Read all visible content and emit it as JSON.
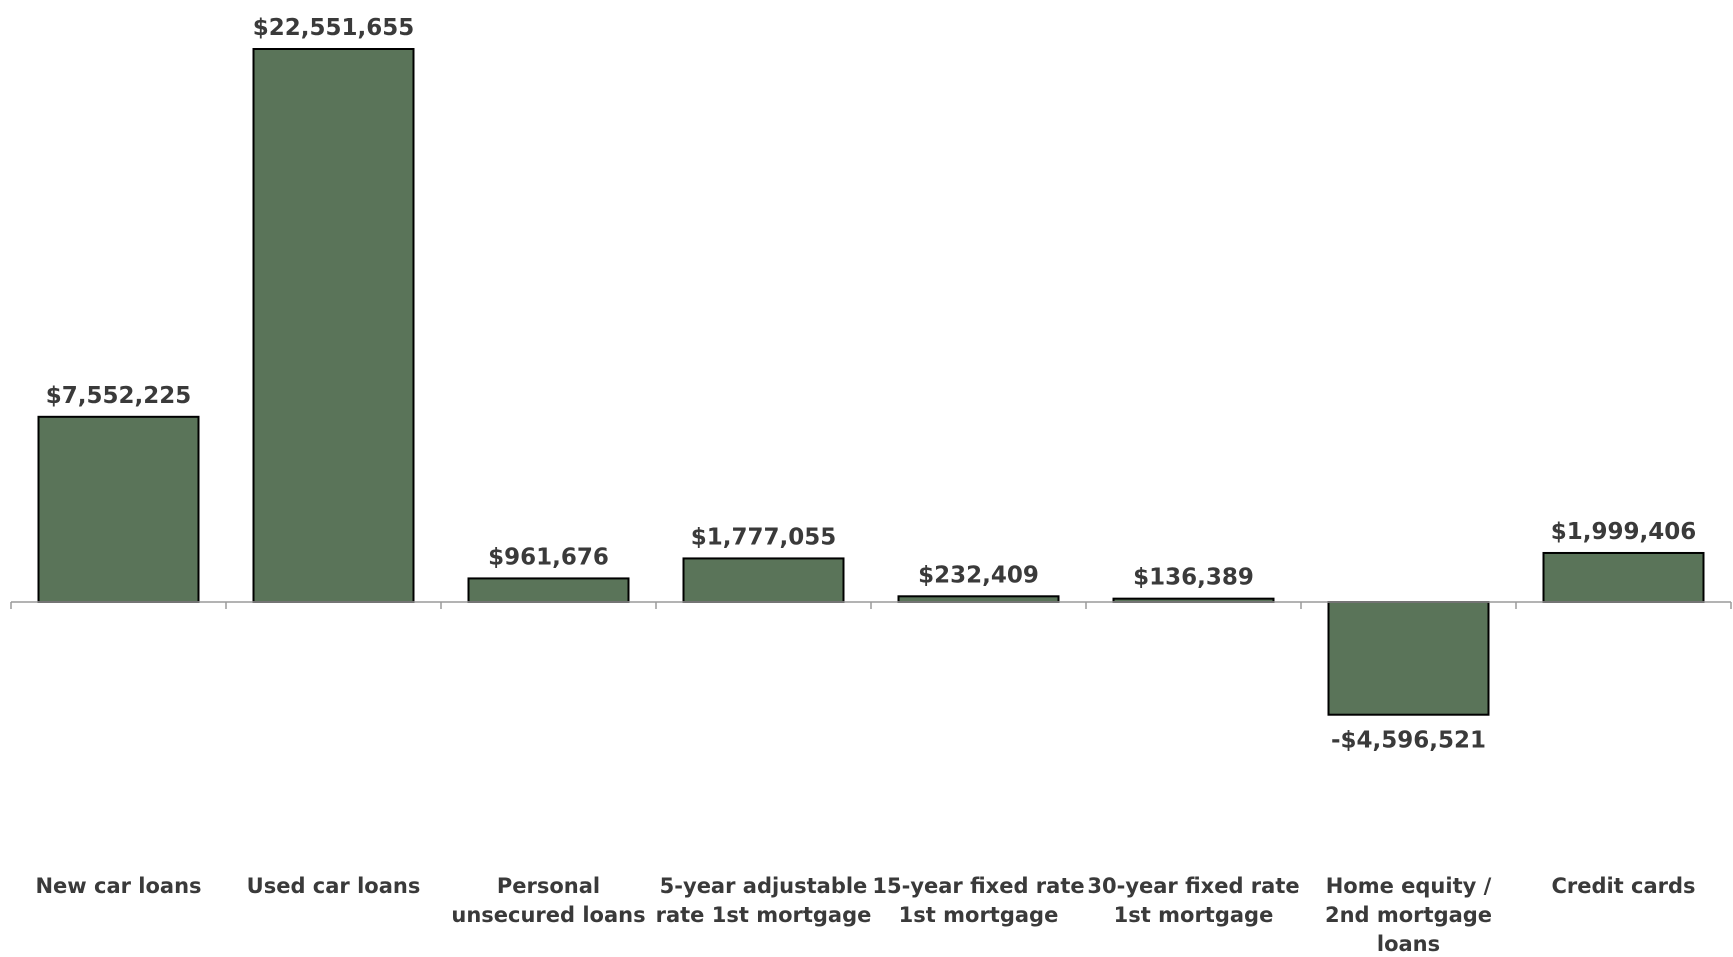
{
  "chart_data": {
    "type": "bar",
    "title": "",
    "xlabel": "",
    "ylabel": "",
    "categories": [
      "New car loans",
      "Used car loans",
      "Personal unsecured loans",
      "5-year adjustable rate 1st mortgage",
      "15-year fixed rate 1st mortgage",
      "30-year fixed rate 1st mortgage",
      "Home equity / 2nd mortgage loans",
      "Credit cards"
    ],
    "category_lines": [
      [
        "New car loans"
      ],
      [
        "Used car loans"
      ],
      [
        "Personal",
        "unsecured loans"
      ],
      [
        "5-year adjustable",
        "rate 1st mortgage"
      ],
      [
        "15-year fixed rate",
        "1st mortgage"
      ],
      [
        "30-year fixed rate",
        "1st mortgage"
      ],
      [
        "Home equity /",
        "2nd mortgage",
        "loans"
      ],
      [
        "Credit cards"
      ]
    ],
    "values": [
      7552225,
      22551655,
      961676,
      1777055,
      232409,
      136389,
      -4596521,
      1999406
    ],
    "data_labels": [
      "$7,552,225",
      "$22,551,655",
      "$961,676",
      "$1,777,055",
      "$232,409",
      "$136,389",
      "-$4,596,521",
      "$1,999,406"
    ],
    "ylim": [
      -10000000,
      24000000
    ],
    "grid": false,
    "legend": "none",
    "bar_color": "#5a7459",
    "bar_border_color": "#000000",
    "axis_color": "#9a9a9a",
    "label_color": "#3a3a3a"
  }
}
